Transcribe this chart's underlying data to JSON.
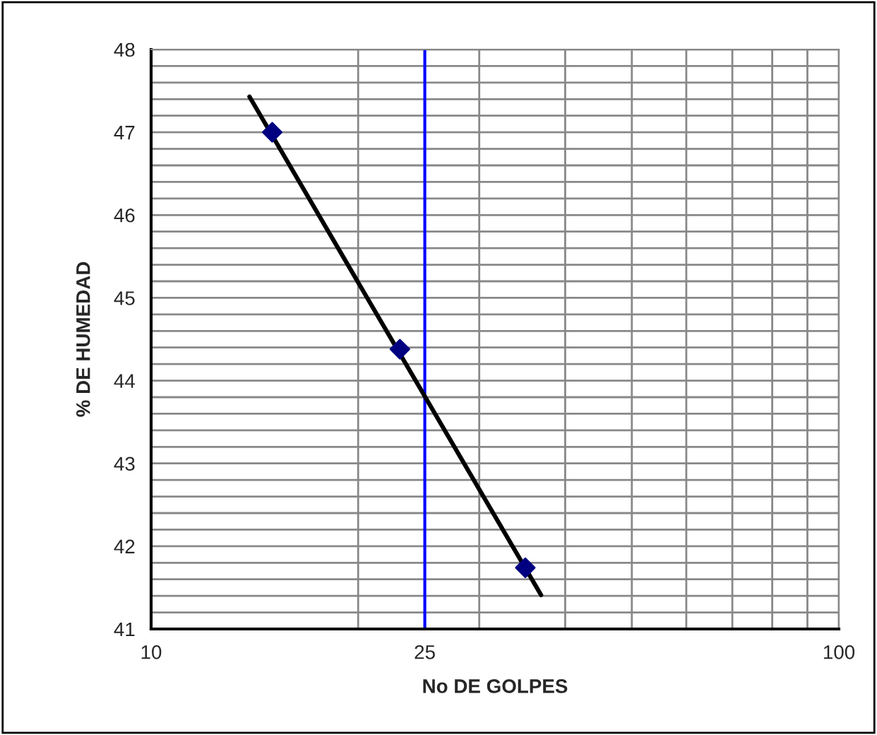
{
  "chart_data": {
    "type": "scatter",
    "xlabel": "No DE GOLPES",
    "ylabel": "% DE HUMEDAD",
    "series": [
      {
        "type": "scatter",
        "color": "#000080",
        "marker": "diamond",
        "x": [
          15,
          23,
          35
        ],
        "values": [
          47.0,
          44.38,
          41.74
        ]
      },
      {
        "type": "line",
        "color": "#000000",
        "marker": "none",
        "x": [
          13.9,
          36.9
        ],
        "values": [
          47.43,
          41.41
        ]
      }
    ],
    "log": "x",
    "xlim": [
      10,
      100
    ],
    "ylim": [
      41,
      48
    ],
    "xticks": [
      10,
      {
        "value": 20,
        "label": null
      },
      25,
      {
        "value": 30,
        "label": null
      },
      {
        "value": 40,
        "label": null
      },
      {
        "value": 50,
        "label": null
      },
      {
        "value": 60,
        "label": null
      },
      {
        "value": 70,
        "label": null
      },
      {
        "value": 80,
        "label": null
      },
      {
        "value": 90,
        "label": null
      },
      100
    ],
    "yticks": [
      41,
      {
        "value": 41.2,
        "label": null
      },
      {
        "value": 41.4,
        "label": null
      },
      {
        "value": 41.6,
        "label": null
      },
      {
        "value": 41.8,
        "label": null
      },
      42,
      {
        "value": 42.2,
        "label": null
      },
      {
        "value": 42.4,
        "label": null
      },
      {
        "value": 42.6,
        "label": null
      },
      {
        "value": 42.8,
        "label": null
      },
      43,
      {
        "value": 43.2,
        "label": null
      },
      {
        "value": 43.4,
        "label": null
      },
      {
        "value": 43.6,
        "label": null
      },
      {
        "value": 43.8,
        "label": null
      },
      44,
      {
        "value": 44.2,
        "label": null
      },
      {
        "value": 44.4,
        "label": null
      },
      {
        "value": 44.6,
        "label": null
      },
      {
        "value": 44.8,
        "label": null
      },
      45,
      {
        "value": 45.2,
        "label": null
      },
      {
        "value": 45.4,
        "label": null
      },
      {
        "value": 45.6,
        "label": null
      },
      {
        "value": 45.8,
        "label": null
      },
      46,
      {
        "value": 46.2,
        "label": null
      },
      {
        "value": 46.4,
        "label": null
      },
      {
        "value": 46.6,
        "label": null
      },
      {
        "value": 46.8,
        "label": null
      },
      47,
      {
        "value": 47.2,
        "label": null
      },
      {
        "value": 47.4,
        "label": null
      },
      {
        "value": 47.6,
        "label": null
      },
      {
        "value": 47.8,
        "label": null
      },
      48
    ],
    "grid": true,
    "ref_lines": [
      {
        "axis": "x",
        "value": 25,
        "color": "#0000ff",
        "line_style": "solid"
      }
    ]
  }
}
